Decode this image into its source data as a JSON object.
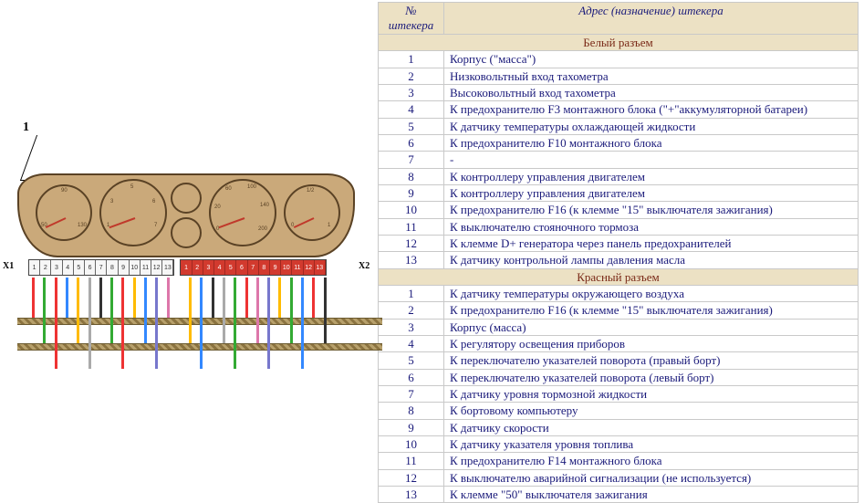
{
  "diagram": {
    "label1": "1",
    "x1": "X1",
    "x2": "X2",
    "gauge_ticks": {
      "g1": [
        "50",
        "90",
        "130"
      ],
      "g2": [
        "1",
        "2",
        "3",
        "4",
        "5",
        "6",
        "7"
      ],
      "g5": [
        "0",
        "20",
        "60",
        "100",
        "140",
        "200"
      ],
      "g6": [
        "0",
        "1/2",
        "1"
      ]
    },
    "white_pins": [
      "1",
      "2",
      "3",
      "4",
      "5",
      "6",
      "7",
      "8",
      "9",
      "10",
      "11",
      "12",
      "13"
    ],
    "red_pins": [
      "1",
      "2",
      "3",
      "4",
      "5",
      "6",
      "7",
      "8",
      "9",
      "10",
      "11",
      "12",
      "13"
    ],
    "wire_colors_white": [
      "#e33",
      "#3a3",
      "#e33",
      "#38f",
      "#fb0",
      "#aaa",
      "#333",
      "#3a3",
      "#e33",
      "#fb0",
      "#38f",
      "#77c",
      "#d7a"
    ],
    "wire_colors_red": [
      "#fb0",
      "#38f",
      "#333",
      "#aaa",
      "#3a3",
      "#e33",
      "#d7a",
      "#77c",
      "#fb0",
      "#3a3",
      "#38f",
      "#e33",
      "#333"
    ],
    "cluster_fill": "#caa97a",
    "cluster_border": "#5a4225",
    "needle_color": "#c0392b",
    "red_connector": "#d23a2e",
    "bundle_color_a": "#b7a06b",
    "bundle_color_b": "#8b7340"
  },
  "table": {
    "header_plug": "№ штекера",
    "header_addr": "Адрес (назначение) штекера",
    "section_white": "Белый разъем",
    "section_red": "Красный разъем",
    "white_rows": [
      {
        "n": "1",
        "d": "Корпус (\"масса\")"
      },
      {
        "n": "2",
        "d": "Низковольтный вход тахометра"
      },
      {
        "n": "3",
        "d": "Высоковольтный вход тахометра"
      },
      {
        "n": "4",
        "d": "К предохранителю F3 монтажного блока (\"+\"аккумуляторной батареи)"
      },
      {
        "n": "5",
        "d": "К датчику температуры охлаждающей жидкости"
      },
      {
        "n": "6",
        "d": "К предохранителю F10 монтажного блока"
      },
      {
        "n": "7",
        "d": "-"
      },
      {
        "n": "8",
        "d": "К контроллеру управления двигателем"
      },
      {
        "n": "9",
        "d": "К контроллеру управления двигателем"
      },
      {
        "n": "10",
        "d": "К предохранителю F16 (к клемме \"15\" выключателя зажигания)"
      },
      {
        "n": "11",
        "d": "К выключателю стояночного тормоза"
      },
      {
        "n": "12",
        "d": "К клемме D+ генератора через панель предохранителей"
      },
      {
        "n": "13",
        "d": "К датчику контрольной лампы давления масла"
      }
    ],
    "red_rows": [
      {
        "n": "1",
        "d": "К датчику температуры окружающего воздуха"
      },
      {
        "n": "2",
        "d": "К предохранителю F16 (к клемме \"15\" выключателя зажигания)"
      },
      {
        "n": "3",
        "d": "Корпус (масса)"
      },
      {
        "n": "4",
        "d": "К регулятору освещения приборов"
      },
      {
        "n": "5",
        "d": "К переключателю указателей поворота (правый борт)"
      },
      {
        "n": "6",
        "d": "К переключателю указателей поворота (левый борт)"
      },
      {
        "n": "7",
        "d": "К датчику уровня тормозной жидкости"
      },
      {
        "n": "8",
        "d": "К бортовому компьютеру"
      },
      {
        "n": "9",
        "d": "К датчику скорости"
      },
      {
        "n": "10",
        "d": "К датчику указателя уровня топлива"
      },
      {
        "n": "11",
        "d": "К предохранителю F14 монтажного блока"
      },
      {
        "n": "12",
        "d": "К выключателю аварийной сигнализации (не используется)"
      },
      {
        "n": "13",
        "d": "К клемме \"50\" выключателя зажигания"
      }
    ],
    "header_bg": "#ece1c4",
    "text_color": "#1a1a7a",
    "section_text_color": "#7a2a18",
    "border_color": "#c9c9c9"
  }
}
